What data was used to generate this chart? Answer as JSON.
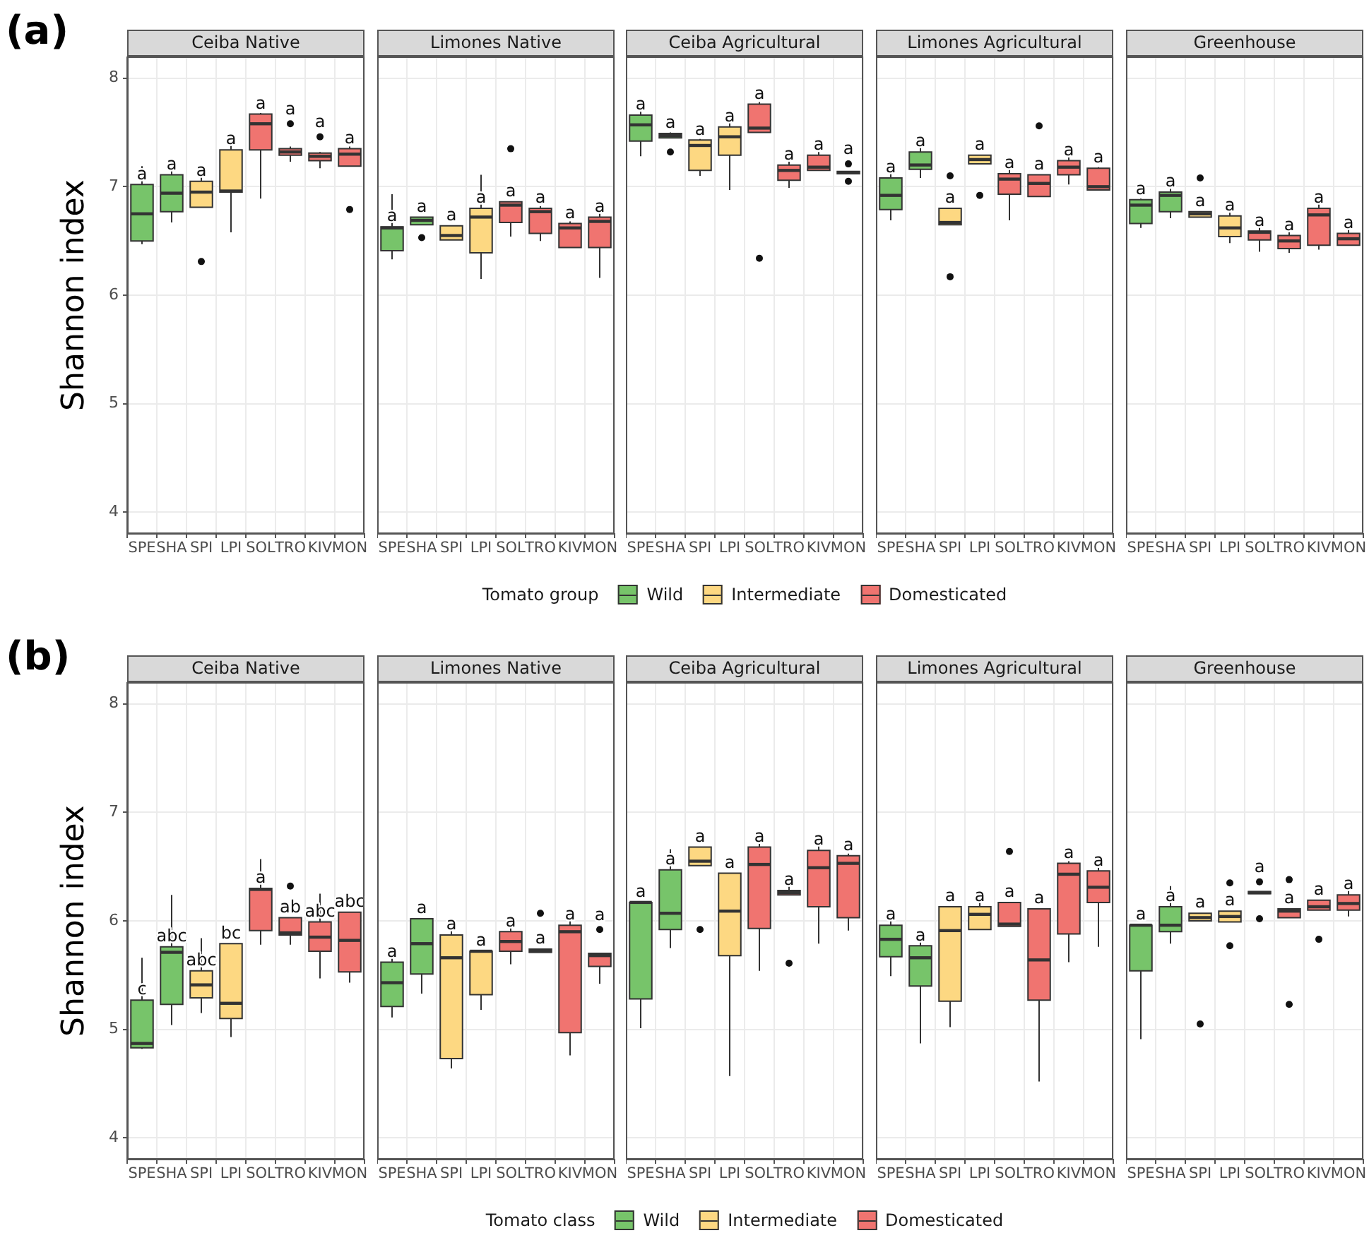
{
  "chart_data": [
    {
      "type": "box",
      "title": "Ceiba Native",
      "ylabel": "Shannon index",
      "categories": [
        "SPE",
        "SHA",
        "SPI",
        "LPI",
        "SOL",
        "TRO",
        "KIV",
        "MON"
      ],
      "ylim": [
        3.8,
        8.2
      ],
      "yticks": [
        4,
        5,
        6,
        7,
        8
      ],
      "grid": true,
      "series": [
        {
          "color": "#77c46a",
          "boxes": [
            {
              "low": 6.47,
              "q1": 6.5,
              "median": 6.75,
              "q3": 7.02,
              "high": 7.19
            },
            {
              "low": 6.67,
              "q1": 6.77,
              "median": 6.94,
              "q3": 7.11,
              "high": 7.16
            },
            null,
            null,
            null,
            null,
            null,
            null
          ]
        },
        {
          "color": "#fdd882",
          "boxes": [
            null,
            null,
            {
              "low": 6.81,
              "q1": 6.81,
              "median": 6.95,
              "q3": 7.05,
              "high": 7.11,
              "outliers": [
                6.31
              ]
            },
            {
              "low": 6.58,
              "q1": 6.95,
              "median": 6.96,
              "q3": 7.34,
              "high": 7.38
            },
            null,
            null,
            null,
            null
          ]
        },
        {
          "color": "#f07470",
          "boxes": [
            null,
            null,
            null,
            null,
            {
              "low": 6.89,
              "q1": 7.34,
              "median": 7.58,
              "q3": 7.67,
              "high": 7.68
            },
            {
              "low": 7.23,
              "q1": 7.29,
              "median": 7.32,
              "q3": 7.35,
              "high": 7.37,
              "outliers": [
                7.58
              ]
            },
            {
              "low": 7.17,
              "q1": 7.24,
              "median": 7.28,
              "q3": 7.31,
              "high": 7.32,
              "outliers": [
                7.46
              ]
            },
            {
              "low": 7.19,
              "q1": 7.19,
              "median": 7.3,
              "q3": 7.35,
              "high": 7.37,
              "outliers": [
                6.79
              ]
            }
          ]
        }
      ],
      "annotations": [
        "(a)",
        "a",
        "a",
        "a",
        "a",
        "a",
        "a",
        "a",
        "a"
      ]
    },
    {
      "type": "box",
      "title": "Limones Native",
      "categories": [
        "SPE",
        "SHA",
        "SPI",
        "LPI",
        "SOL",
        "TRO",
        "KIV",
        "MON"
      ],
      "ylim": [
        3.8,
        8.2
      ],
      "yticks": [
        4,
        5,
        6,
        7,
        8
      ],
      "grid": true,
      "tick_labels": "x",
      "series": [
        {
          "color": "#77c46a",
          "boxes": [
            {
              "low": 6.33,
              "q1": 6.41,
              "median": 6.62,
              "q3": 6.63,
              "high": 6.93
            },
            {
              "low": 6.65,
              "q1": 6.65,
              "median": 6.69,
              "q3": 6.72,
              "high": 6.72,
              "outliers": [
                6.53
              ]
            },
            null,
            null,
            null,
            null,
            null,
            null
          ]
        },
        {
          "color": "#fdd882",
          "boxes": [
            null,
            null,
            {
              "low": 6.51,
              "q1": 6.51,
              "median": 6.55,
              "q3": 6.64,
              "high": 6.64
            },
            {
              "low": 6.15,
              "q1": 6.39,
              "median": 6.72,
              "q3": 6.8,
              "high": 7.11
            },
            null,
            null,
            null,
            null
          ]
        },
        {
          "color": "#f07470",
          "boxes": [
            null,
            null,
            null,
            null,
            {
              "low": 6.54,
              "q1": 6.67,
              "median": 6.83,
              "q3": 6.86,
              "high": 6.86,
              "outliers": [
                7.35
              ]
            },
            {
              "low": 6.5,
              "q1": 6.57,
              "median": 6.77,
              "q3": 6.8,
              "high": 6.82
            },
            {
              "low": 6.44,
              "q1": 6.44,
              "median": 6.62,
              "q3": 6.66,
              "high": 6.68
            },
            {
              "low": 6.16,
              "q1": 6.44,
              "median": 6.68,
              "q3": 6.72,
              "high": 6.79
            }
          ]
        }
      ],
      "annotations": [
        "a",
        "a",
        "a",
        "a",
        "a",
        "a",
        "a",
        "a"
      ]
    },
    {
      "type": "box",
      "title": "Ceiba Agricultural",
      "categories": [
        "SPE",
        "SHA",
        "SPI",
        "LPI",
        "SOL",
        "TRO",
        "KIV",
        "MON"
      ],
      "ylim": [
        3.8,
        8.2
      ],
      "yticks": [
        4,
        5,
        6,
        7,
        8
      ],
      "grid": true,
      "tick_labels": "x",
      "legend": "bottom",
      "legend_title": "Tomato group",
      "series": [
        {
          "name": "Wild",
          "color": "#77c46a",
          "boxes": [
            {
              "low": 7.28,
              "q1": 7.42,
              "median": 7.57,
              "q3": 7.66,
              "high": 7.69
            },
            {
              "low": 7.45,
              "q1": 7.45,
              "median": 7.47,
              "q3": 7.49,
              "high": 7.5,
              "outliers": [
                7.32
              ]
            },
            null,
            null,
            null,
            null,
            null,
            null
          ]
        },
        {
          "name": "Intermediate",
          "color": "#fdd882",
          "boxes": [
            null,
            null,
            {
              "low": 7.1,
              "q1": 7.15,
              "median": 7.38,
              "q3": 7.43,
              "high": 7.44
            },
            {
              "low": 6.97,
              "q1": 7.29,
              "median": 7.46,
              "q3": 7.55,
              "high": 7.61
            },
            null,
            null,
            null,
            null
          ]
        },
        {
          "name": "Domesticated",
          "color": "#f07470",
          "boxes": [
            null,
            null,
            null,
            null,
            {
              "low": 7.5,
              "q1": 7.5,
              "median": 7.54,
              "q3": 7.76,
              "high": 7.78,
              "outliers": [
                6.34
              ]
            },
            {
              "low": 6.99,
              "q1": 7.06,
              "median": 7.15,
              "q3": 7.2,
              "high": 7.23
            },
            {
              "low": 7.15,
              "q1": 7.15,
              "median": 7.18,
              "q3": 7.29,
              "high": 7.32
            },
            {
              "low": 7.12,
              "q1": 7.12,
              "median": 7.13,
              "q3": 7.14,
              "high": 7.14,
              "outliers": [
                7.21,
                7.05
              ]
            }
          ]
        }
      ],
      "annotations": [
        "a",
        "a",
        "a",
        "a",
        "a",
        "a",
        "a",
        "a"
      ]
    },
    {
      "type": "box",
      "title": "Limones Agricultural",
      "categories": [
        "SPE",
        "SHA",
        "SPI",
        "LPI",
        "SOL",
        "TRO",
        "KIV",
        "MON"
      ],
      "ylim": [
        3.8,
        8.2
      ],
      "yticks": [
        4,
        5,
        6,
        7,
        8
      ],
      "grid": true,
      "tick_labels": "x",
      "series": [
        {
          "color": "#77c46a",
          "boxes": [
            {
              "low": 6.69,
              "q1": 6.79,
              "median": 6.92,
              "q3": 7.08,
              "high": 7.16
            },
            {
              "low": 7.08,
              "q1": 7.16,
              "median": 7.2,
              "q3": 7.32,
              "high": 7.38
            },
            null,
            null,
            null,
            null,
            null,
            null
          ]
        },
        {
          "color": "#fdd882",
          "boxes": [
            null,
            null,
            {
              "low": 6.65,
              "q1": 6.65,
              "median": 6.67,
              "q3": 6.8,
              "high": 6.8,
              "outliers": [
                7.1,
                6.17
              ]
            },
            {
              "low": 7.21,
              "q1": 7.21,
              "median": 7.25,
              "q3": 7.29,
              "high": 7.29,
              "outliers": [
                6.92
              ]
            },
            null,
            null,
            null,
            null
          ]
        },
        {
          "color": "#f07470",
          "boxes": [
            null,
            null,
            null,
            null,
            {
              "low": 6.69,
              "q1": 6.93,
              "median": 7.07,
              "q3": 7.12,
              "high": 7.16
            },
            {
              "low": 6.91,
              "q1": 6.91,
              "median": 7.03,
              "q3": 7.11,
              "high": 7.11,
              "outliers": [
                7.56
              ]
            },
            {
              "low": 7.02,
              "q1": 7.11,
              "median": 7.18,
              "q3": 7.24,
              "high": 7.27
            },
            {
              "low": 6.97,
              "q1": 6.97,
              "median": 7.0,
              "q3": 7.17,
              "high": 7.18
            }
          ]
        }
      ],
      "annotations": [
        "a",
        "a",
        "a",
        "a",
        "a",
        "a",
        "a",
        "a"
      ]
    },
    {
      "type": "box",
      "title": "Greenhouse",
      "categories": [
        "SPE",
        "SHA",
        "SPI",
        "LPI",
        "SOL",
        "TRO",
        "KIV",
        "MON"
      ],
      "ylim": [
        3.8,
        8.2
      ],
      "yticks": [
        4,
        5,
        6,
        7,
        8
      ],
      "grid": true,
      "tick_labels": "x",
      "series": [
        {
          "color": "#77c46a",
          "boxes": [
            {
              "low": 6.62,
              "q1": 6.66,
              "median": 6.83,
              "q3": 6.88,
              "high": 6.89
            },
            {
              "low": 6.71,
              "q1": 6.77,
              "median": 6.92,
              "q3": 6.95,
              "high": 6.98
            },
            null,
            null,
            null,
            null,
            null,
            null
          ]
        },
        {
          "color": "#fdd882",
          "boxes": [
            null,
            null,
            {
              "low": 6.72,
              "q1": 6.72,
              "median": 6.75,
              "q3": 6.77,
              "high": 6.77,
              "outliers": [
                7.08
              ]
            },
            {
              "low": 6.48,
              "q1": 6.54,
              "median": 6.62,
              "q3": 6.73,
              "high": 6.76
            },
            null,
            null,
            null,
            null
          ]
        },
        {
          "color": "#f07470",
          "boxes": [
            null,
            null,
            null,
            null,
            {
              "low": 6.4,
              "q1": 6.51,
              "median": 6.58,
              "q3": 6.59,
              "high": 6.63
            },
            {
              "low": 6.39,
              "q1": 6.43,
              "median": 6.5,
              "q3": 6.55,
              "high": 6.58
            },
            {
              "low": 6.42,
              "q1": 6.46,
              "median": 6.74,
              "q3": 6.8,
              "high": 6.86
            },
            {
              "low": 6.46,
              "q1": 6.46,
              "median": 6.52,
              "q3": 6.57,
              "high": 6.63
            }
          ]
        }
      ],
      "annotations": [
        "a",
        "a",
        "a",
        "a",
        "a",
        "a",
        "a",
        "a"
      ]
    },
    {
      "type": "box",
      "title": "Ceiba Native",
      "ylabel": "Shannon index",
      "categories": [
        "SPE",
        "SHA",
        "SPI",
        "LPI",
        "SOL",
        "TRO",
        "KIV",
        "MON"
      ],
      "ylim": [
        3.8,
        8.2
      ],
      "yticks": [
        4,
        5,
        6,
        7,
        8
      ],
      "grid": true,
      "series": [
        {
          "color": "#77c46a",
          "boxes": [
            {
              "low": 4.82,
              "q1": 4.83,
              "median": 4.87,
              "q3": 5.27,
              "high": 5.66
            },
            {
              "low": 5.04,
              "q1": 5.23,
              "median": 5.71,
              "q3": 5.76,
              "high": 6.24
            },
            null,
            null,
            null,
            null,
            null,
            null
          ]
        },
        {
          "color": "#fdd882",
          "boxes": [
            null,
            null,
            {
              "low": 5.15,
              "q1": 5.29,
              "median": 5.41,
              "q3": 5.54,
              "high": 5.84
            },
            {
              "low": 4.93,
              "q1": 5.1,
              "median": 5.24,
              "q3": 5.79,
              "high": 5.79
            },
            null,
            null,
            null,
            null
          ]
        },
        {
          "color": "#f07470",
          "boxes": [
            null,
            null,
            null,
            null,
            {
              "low": 5.78,
              "q1": 5.91,
              "median": 6.29,
              "q3": 6.3,
              "high": 6.57
            },
            {
              "low": 5.78,
              "q1": 5.87,
              "median": 5.89,
              "q3": 6.03,
              "high": 6.03,
              "outliers": [
                6.32
              ]
            },
            {
              "low": 5.47,
              "q1": 5.72,
              "median": 5.85,
              "q3": 5.99,
              "high": 6.25
            },
            {
              "low": 5.43,
              "q1": 5.53,
              "median": 5.82,
              "q3": 6.08,
              "high": 6.08
            }
          ]
        }
      ],
      "annotations": [
        "(b)",
        "c",
        "abc",
        "abc",
        "bc",
        "a",
        "ab",
        "abc",
        "abc"
      ]
    },
    {
      "type": "box",
      "title": "Limones Native",
      "categories": [
        "SPE",
        "SHA",
        "SPI",
        "LPI",
        "SOL",
        "TRO",
        "KIV",
        "MON"
      ],
      "ylim": [
        3.8,
        8.2
      ],
      "yticks": [
        4,
        5,
        6,
        7,
        8
      ],
      "grid": true,
      "tick_labels": "x",
      "series": [
        {
          "color": "#77c46a",
          "boxes": [
            {
              "low": 5.11,
              "q1": 5.21,
              "median": 5.43,
              "q3": 5.62,
              "high": 5.73
            },
            {
              "low": 5.33,
              "q1": 5.51,
              "median": 5.79,
              "q3": 6.02,
              "high": 6.02
            },
            null,
            null,
            null,
            null,
            null,
            null
          ]
        },
        {
          "color": "#fdd882",
          "boxes": [
            null,
            null,
            {
              "low": 4.64,
              "q1": 4.73,
              "median": 5.66,
              "q3": 5.87,
              "high": 6.0
            },
            {
              "low": 5.18,
              "q1": 5.32,
              "median": 5.72,
              "q3": 5.72,
              "high": 5.72
            },
            null,
            null,
            null,
            null
          ]
        },
        {
          "color": "#f07470",
          "boxes": [
            null,
            null,
            null,
            null,
            {
              "low": 5.6,
              "q1": 5.72,
              "median": 5.81,
              "q3": 5.9,
              "high": 6.03
            },
            {
              "low": 5.71,
              "q1": 5.71,
              "median": 5.72,
              "q3": 5.74,
              "high": 5.74,
              "outliers": [
                6.07
              ]
            },
            {
              "low": 4.76,
              "q1": 4.97,
              "median": 5.9,
              "q3": 5.96,
              "high": 6.09
            },
            {
              "low": 5.42,
              "q1": 5.58,
              "median": 5.68,
              "q3": 5.7,
              "high": 5.7,
              "outliers": [
                5.92
              ]
            }
          ]
        }
      ],
      "annotations": [
        "a",
        "a",
        "a",
        "a",
        "a",
        "a",
        "a",
        "a"
      ]
    },
    {
      "type": "box",
      "title": "Ceiba Agricultural",
      "categories": [
        "SPE",
        "SHA",
        "SPI",
        "LPI",
        "SOL",
        "TRO",
        "KIV",
        "MON"
      ],
      "ylim": [
        3.8,
        8.2
      ],
      "yticks": [
        4,
        5,
        6,
        7,
        8
      ],
      "grid": true,
      "tick_labels": "x",
      "legend": "bottom",
      "legend_title": "Tomato class",
      "series": [
        {
          "name": "Wild",
          "color": "#77c46a",
          "boxes": [
            {
              "low": 5.01,
              "q1": 5.28,
              "median": 6.17,
              "q3": 6.17,
              "high": 6.17
            },
            {
              "low": 5.75,
              "q1": 5.92,
              "median": 6.07,
              "q3": 6.47,
              "high": 6.66
            },
            null,
            null,
            null,
            null,
            null,
            null
          ]
        },
        {
          "name": "Intermediate",
          "color": "#fdd882",
          "boxes": [
            null,
            null,
            {
              "low": 6.51,
              "q1": 6.51,
              "median": 6.55,
              "q3": 6.68,
              "high": 6.68,
              "outliers": [
                5.92
              ]
            },
            {
              "low": 4.57,
              "q1": 5.68,
              "median": 6.09,
              "q3": 6.44,
              "high": 6.44
            },
            null,
            null,
            null,
            null
          ]
        },
        {
          "name": "Domesticated",
          "color": "#f07470",
          "boxes": [
            null,
            null,
            null,
            null,
            {
              "low": 5.54,
              "q1": 5.93,
              "median": 6.52,
              "q3": 6.68,
              "high": 6.71
            },
            {
              "low": 6.24,
              "q1": 6.24,
              "median": 6.26,
              "q3": 6.28,
              "high": 6.32,
              "outliers": [
                5.61
              ]
            },
            {
              "low": 5.79,
              "q1": 6.13,
              "median": 6.49,
              "q3": 6.65,
              "high": 6.71
            },
            {
              "low": 5.91,
              "q1": 6.03,
              "median": 6.53,
              "q3": 6.6,
              "high": 6.62
            }
          ]
        }
      ],
      "annotations": [
        "a",
        "a",
        "a",
        "a",
        "a",
        "a",
        "a",
        "a"
      ]
    },
    {
      "type": "box",
      "title": "Limones Agricultural",
      "categories": [
        "SPE",
        "SHA",
        "SPI",
        "LPI",
        "SOL",
        "TRO",
        "KIV",
        "MON"
      ],
      "ylim": [
        3.8,
        8.2
      ],
      "yticks": [
        4,
        5,
        6,
        7,
        8
      ],
      "grid": true,
      "tick_labels": "x",
      "series": [
        {
          "color": "#77c46a",
          "boxes": [
            {
              "low": 5.49,
              "q1": 5.67,
              "median": 5.83,
              "q3": 5.96,
              "high": 6.09
            },
            {
              "low": 4.87,
              "q1": 5.4,
              "median": 5.66,
              "q3": 5.77,
              "high": 5.84
            },
            null,
            null,
            null,
            null,
            null,
            null
          ]
        },
        {
          "color": "#fdd882",
          "boxes": [
            null,
            null,
            {
              "low": 5.02,
              "q1": 5.26,
              "median": 5.91,
              "q3": 6.13,
              "high": 6.13
            },
            {
              "low": 5.92,
              "q1": 5.92,
              "median": 6.06,
              "q3": 6.13,
              "high": 6.17
            },
            null,
            null,
            null,
            null
          ]
        },
        {
          "color": "#f07470",
          "boxes": [
            null,
            null,
            null,
            null,
            {
              "low": 5.95,
              "q1": 5.95,
              "median": 5.97,
              "q3": 6.17,
              "high": 6.17,
              "outliers": [
                6.64
              ]
            },
            {
              "low": 4.52,
              "q1": 5.27,
              "median": 5.64,
              "q3": 6.11,
              "high": 6.11
            },
            {
              "low": 5.62,
              "q1": 5.88,
              "median": 6.43,
              "q3": 6.53,
              "high": 6.55
            },
            {
              "low": 5.76,
              "q1": 6.17,
              "median": 6.31,
              "q3": 6.46,
              "high": 6.49
            }
          ]
        }
      ],
      "annotations": [
        "a",
        "a",
        "a",
        "a",
        "a",
        "a",
        "a",
        "a"
      ]
    },
    {
      "type": "box",
      "title": "Greenhouse",
      "categories": [
        "SPE",
        "SHA",
        "SPI",
        "LPI",
        "SOL",
        "TRO",
        "KIV",
        "MON"
      ],
      "ylim": [
        3.8,
        8.2
      ],
      "yticks": [
        4,
        5,
        6,
        7,
        8
      ],
      "grid": true,
      "tick_labels": "x",
      "series": [
        {
          "color": "#77c46a",
          "boxes": [
            {
              "low": 4.91,
              "q1": 5.54,
              "median": 5.96,
              "q3": 5.96,
              "high": 5.96
            },
            {
              "low": 5.79,
              "q1": 5.9,
              "median": 5.96,
              "q3": 6.13,
              "high": 6.32
            },
            null,
            null,
            null,
            null,
            null,
            null
          ]
        },
        {
          "color": "#fdd882",
          "boxes": [
            null,
            null,
            {
              "low": 6.0,
              "q1": 6.0,
              "median": 6.03,
              "q3": 6.07,
              "high": 6.07,
              "outliers": [
                5.05
              ]
            },
            {
              "low": 5.99,
              "q1": 5.99,
              "median": 6.04,
              "q3": 6.09,
              "high": 6.09,
              "outliers": [
                6.35,
                5.77
              ]
            },
            null,
            null,
            null,
            null
          ]
        },
        {
          "color": "#f07470",
          "boxes": [
            null,
            null,
            null,
            null,
            {
              "low": 6.25,
              "q1": 6.25,
              "median": 6.26,
              "q3": 6.27,
              "high": 6.27,
              "outliers": [
                6.36,
                6.02
              ]
            },
            {
              "low": 6.03,
              "q1": 6.03,
              "median": 6.09,
              "q3": 6.11,
              "high": 6.11,
              "outliers": [
                6.38,
                5.23
              ]
            },
            {
              "low": 6.1,
              "q1": 6.1,
              "median": 6.13,
              "q3": 6.19,
              "high": 6.19,
              "outliers": [
                5.83
              ]
            },
            {
              "low": 6.04,
              "q1": 6.1,
              "median": 6.16,
              "q3": 6.24,
              "high": 6.32
            }
          ]
        }
      ],
      "annotations": [
        "a",
        "a",
        "a",
        "a",
        "a",
        "a",
        "a",
        "a"
      ]
    }
  ]
}
